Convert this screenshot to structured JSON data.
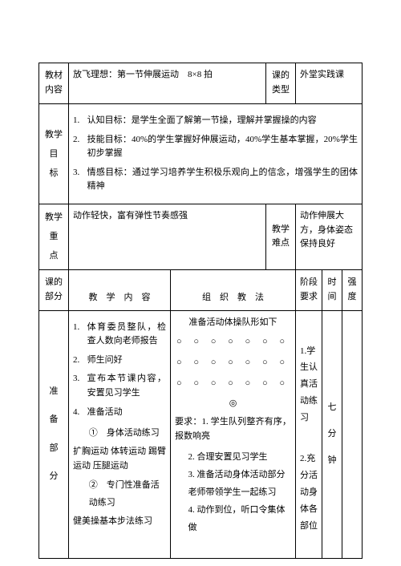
{
  "row1": {
    "label": "教材\n内容",
    "content": "放飞理想：第一节伸展运动　8×8 拍",
    "typeLabel": "课的\n类型",
    "typeValue": "外堂实践课"
  },
  "row2": {
    "label": "教学\n目\n标",
    "item1": "认知目标：是学生全面了解第一节操，理解并掌握操的内容",
    "item2": "技能目标：40%的学生掌握好伸展运动，40%学生基本掌握，20%学生初步掌握",
    "item3": "情感目标：通过学习培养学生积极乐观向上的信念，增强学生的团体精神"
  },
  "row3": {
    "keyLabel": "教学\n重\n点",
    "keyValue": "动作轻快，富有弹性节奏感强",
    "diffLabel": "教学\n难点",
    "diffValue": "动作伸展大方，身体姿态保持良好"
  },
  "row4": {
    "partLabel": "课的\n部分",
    "contentHeader": "教　学　内　容",
    "methodHeader": "组　织　教　法",
    "stageHeader": "阶段\n要求",
    "timeHeader": "时\n间",
    "intensityHeader": "强\n度"
  },
  "prep": {
    "sectionLabel": "准\n\n备\n\n部\n\n分",
    "c1": "体育委员整队，检查人数向老师报告",
    "c2": "师生问好",
    "c3": "宣布本节课内容，安置见习学生",
    "c4": "准备活动",
    "c4a": "①　身体活动练习",
    "c4a_detail": "扩胸运动 体转运动 踢臂运动 压腿运动",
    "c4b": "②　专门性准备活动练习",
    "c4b_detail": "健美操基本步法练习",
    "methodTitle": "准备活动体操队形如下",
    "circlesRow": "○ ○ ○ ○ ○ ○ ○",
    "smallCircle": "◎",
    "reqLabel": "要求：",
    "req1": "1. 学生队列整齐有序，报数响亮",
    "req2": "2. 合理安置见习学生",
    "req3": "3. 准备活动身体活动部分老师带领学生一起练习",
    "req4": "4. 动作到位，听口令集体做",
    "stage1": "1.学生认真活动练习",
    "stage2": "2.充分活动身体各部位",
    "timeValue": "七\n\n分\n\n钟"
  }
}
